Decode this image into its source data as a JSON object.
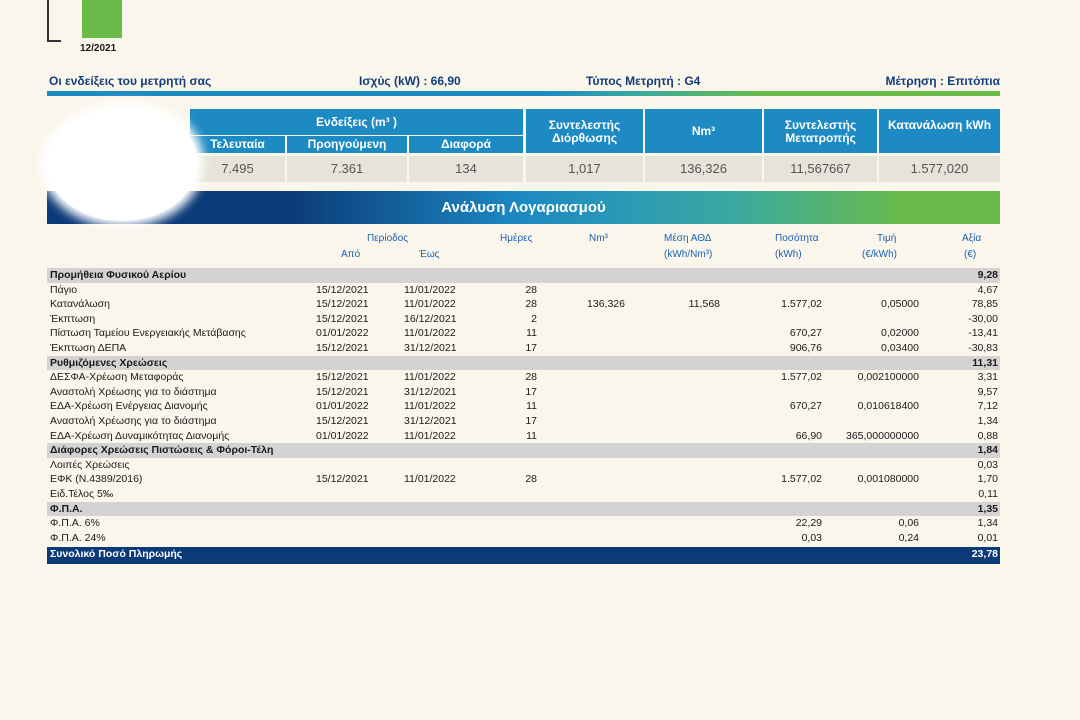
{
  "mini_chart": {
    "label": "12/2021"
  },
  "meter_info": {
    "title": "Οι ενδείξεις του μετρητή σας",
    "power": "Ισχύς (kW) : 66,90",
    "meter_type": "Τύπος Μετρητή : G4",
    "measurement": "Μέτρηση : Επιτόπια"
  },
  "readings": {
    "group_header": "Ενδείξεις (m³ )",
    "col_last": "Τελευταία",
    "col_previous": "Προηγούμενη",
    "col_difference": "Διαφορά",
    "col_correction": "Συντελεστής Διόρθωσης",
    "col_nm3": "Nm³",
    "col_conversion": "Συντελεστής Μετατροπής",
    "col_consumption": "Κατανάλωση kWh",
    "val_last": "7.495",
    "val_previous": "7.361",
    "val_difference": "134",
    "val_correction": "1,017",
    "val_nm3": "136,326",
    "val_conversion": "11,567667",
    "val_consumption": "1.577,020"
  },
  "analysis": {
    "title": "Ανάλυση Λογαριασμού",
    "headers": {
      "period": "Περίοδος",
      "from": "Από",
      "to": "Έως",
      "days": "Ημέρες",
      "nm3": "Nm³",
      "avg_line1": "Μέση ΑΘΔ",
      "avg_line2": "(kWh/Nm³)",
      "qty_line1": "Ποσότητα",
      "qty_line2": "(kWh)",
      "price_line1": "Τιμή",
      "price_line2": "(€/kWh)",
      "value_line1": "Αξία",
      "value_line2": "(€)"
    },
    "rows": [
      {
        "type": "section",
        "desc": "Προμήθεια Φυσικού Αερίου",
        "from": "",
        "to": "",
        "days": "",
        "nm3": "",
        "avg": "",
        "qty": "",
        "price": "",
        "value": "9,28"
      },
      {
        "type": "item",
        "desc": "Πάγιο",
        "from": "15/12/2021",
        "to": "11/01/2022",
        "days": "28",
        "nm3": "",
        "avg": "",
        "qty": "",
        "price": "",
        "value": "4,67"
      },
      {
        "type": "item",
        "desc": "Κατανάλωση",
        "from": "15/12/2021",
        "to": "11/01/2022",
        "days": "28",
        "nm3": "136,326",
        "avg": "11,568",
        "qty": "1.577,02",
        "price": "0,05000",
        "value": "78,85"
      },
      {
        "type": "item",
        "desc": "Έκπτωση",
        "from": "15/12/2021",
        "to": "16/12/2021",
        "days": "2",
        "nm3": "",
        "avg": "",
        "qty": "",
        "price": "",
        "value": "-30,00"
      },
      {
        "type": "item",
        "desc": "Πίστωση Ταμείου Ενεργειακής Μετάβασης",
        "from": "01/01/2022",
        "to": "11/01/2022",
        "days": "11",
        "nm3": "",
        "avg": "",
        "qty": "670,27",
        "price": "0,02000",
        "value": "-13,41"
      },
      {
        "type": "item",
        "desc": "Έκπτωση ΔΕΠΑ",
        "from": "15/12/2021",
        "to": "31/12/2021",
        "days": "17",
        "nm3": "",
        "avg": "",
        "qty": "906,76",
        "price": "0,03400",
        "value": "-30,83"
      },
      {
        "type": "section",
        "desc": "Ρυθμιζόμενες Χρεώσεις",
        "from": "",
        "to": "",
        "days": "",
        "nm3": "",
        "avg": "",
        "qty": "",
        "price": "",
        "value": "11,31"
      },
      {
        "type": "item",
        "desc": "ΔΕΣΦΑ-Χρέωση Μεταφοράς",
        "from": "15/12/2021",
        "to": "11/01/2022",
        "days": "28",
        "nm3": "",
        "avg": "",
        "qty": "1.577,02",
        "price": "0,002100000",
        "value": "3,31"
      },
      {
        "type": "item",
        "desc": "Αναστολή Χρέωσης για το διάστημα",
        "from": "15/12/2021",
        "to": "31/12/2021",
        "days": "17",
        "nm3": "",
        "avg": "",
        "qty": "",
        "price": "",
        "value": "9,57"
      },
      {
        "type": "item",
        "desc": "ΕΔΑ-Χρέωση Ενέργειας Διανομής",
        "from": "01/01/2022",
        "to": "11/01/2022",
        "days": "11",
        "nm3": "",
        "avg": "",
        "qty": "670,27",
        "price": "0,010618400",
        "value": "7,12"
      },
      {
        "type": "item",
        "desc": "Αναστολή Χρέωσης για το διάστημα",
        "from": "15/12/2021",
        "to": "31/12/2021",
        "days": "17",
        "nm3": "",
        "avg": "",
        "qty": "",
        "price": "",
        "value": "1,34"
      },
      {
        "type": "item",
        "desc": "ΕΔΑ-Χρέωση Δυναμικότητας Διανομής",
        "from": "01/01/2022",
        "to": "11/01/2022",
        "days": "11",
        "nm3": "",
        "avg": "",
        "qty": "66,90",
        "price": "365,000000000",
        "value": "0,88"
      },
      {
        "type": "section",
        "desc": "Διάφορες Χρεώσεις Πιστώσεις & Φόροι-Τέλη",
        "from": "",
        "to": "",
        "days": "",
        "nm3": "",
        "avg": "",
        "qty": "",
        "price": "",
        "value": "1,84"
      },
      {
        "type": "item",
        "desc": "Λοιπές Χρεώσεις",
        "from": "",
        "to": "",
        "days": "",
        "nm3": "",
        "avg": "",
        "qty": "",
        "price": "",
        "value": "0,03"
      },
      {
        "type": "item",
        "desc": "ΕΦΚ (Ν.4389/2016)",
        "from": "15/12/2021",
        "to": "11/01/2022",
        "days": "28",
        "nm3": "",
        "avg": "",
        "qty": "1.577,02",
        "price": "0,001080000",
        "value": "1,70"
      },
      {
        "type": "item",
        "desc": "Ειδ.Τέλος 5‰",
        "from": "",
        "to": "",
        "days": "",
        "nm3": "",
        "avg": "",
        "qty": "",
        "price": "",
        "value": "0,11"
      },
      {
        "type": "section",
        "desc": "Φ.Π.Α.",
        "from": "",
        "to": "",
        "days": "",
        "nm3": "",
        "avg": "",
        "qty": "",
        "price": "",
        "value": "1,35"
      },
      {
        "type": "item",
        "desc": "Φ.Π.Α. 6%",
        "from": "",
        "to": "",
        "days": "",
        "nm3": "",
        "avg": "",
        "qty": "22,29",
        "price": "0,06",
        "value": "1,34"
      },
      {
        "type": "item",
        "desc": "Φ.Π.Α. 24%",
        "from": "",
        "to": "",
        "days": "",
        "nm3": "",
        "avg": "",
        "qty": "0,03",
        "price": "0,24",
        "value": "0,01"
      }
    ],
    "total": {
      "label": "Συνολικό Ποσό Πληρωμής",
      "value": "23,78"
    }
  },
  "colors": {
    "page_bg": "#faf6ec",
    "blue": "#1d8ac4",
    "navy": "#0b3a78",
    "green": "#6abb4a",
    "section_grey": "#d3d3d3",
    "reading_value_bg": "#e5e3da"
  }
}
